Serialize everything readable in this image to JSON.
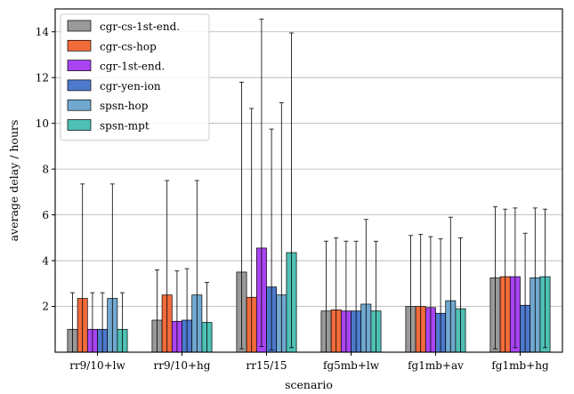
{
  "chart_data": {
    "type": "bar",
    "title": "",
    "xlabel": "scenario",
    "ylabel": "average delay / hours",
    "ylim": [
      0,
      15
    ],
    "yticks": [
      2,
      4,
      6,
      8,
      10,
      12,
      14
    ],
    "ytick_labels": [
      "2",
      "4",
      "6",
      "8",
      "10",
      "12",
      "14"
    ],
    "grid": "horizontal",
    "legend_position": "top-left",
    "categories": [
      "rr9/10+lw",
      "rr9/10+hg",
      "rr15/15",
      "fg5mb+lw",
      "fg1mb+av",
      "fg1mb+hg"
    ],
    "series": [
      {
        "name": "cgr-cs-1st-end.",
        "color": "#999999",
        "values": [
          1.0,
          1.4,
          3.5,
          1.8,
          2.0,
          3.25
        ],
        "err_low": [
          0.0,
          0.0,
          0.15,
          0.0,
          0.0,
          0.15
        ],
        "err_high": [
          2.6,
          3.6,
          11.8,
          4.85,
          5.1,
          6.35
        ]
      },
      {
        "name": "cgr-cs-hop",
        "color": "#f26b3a",
        "values": [
          2.35,
          2.5,
          2.4,
          1.85,
          2.0,
          3.3
        ],
        "err_low": [
          0.0,
          0.0,
          0.0,
          0.0,
          0.0,
          0.0
        ],
        "err_high": [
          7.35,
          7.5,
          10.65,
          5.0,
          5.15,
          6.25
        ]
      },
      {
        "name": "cgr-1st-end.",
        "color": "#a944f2",
        "values": [
          1.0,
          1.35,
          4.55,
          1.8,
          1.95,
          3.3
        ],
        "err_low": [
          0.0,
          0.0,
          0.25,
          0.0,
          0.0,
          0.2
        ],
        "err_high": [
          2.6,
          3.55,
          14.55,
          4.85,
          5.05,
          6.3
        ]
      },
      {
        "name": "cgr-yen-ion",
        "color": "#4d7acc",
        "values": [
          1.0,
          1.4,
          2.85,
          1.8,
          1.7,
          2.05
        ],
        "err_low": [
          0.0,
          0.0,
          0.1,
          0.0,
          0.0,
          0.0
        ],
        "err_high": [
          2.6,
          3.65,
          9.75,
          4.85,
          4.95,
          5.2
        ]
      },
      {
        "name": "spsn-hop",
        "color": "#71a8cf",
        "values": [
          2.35,
          2.5,
          2.5,
          2.1,
          2.25,
          3.25
        ],
        "err_low": [
          0.0,
          0.0,
          0.0,
          0.0,
          0.0,
          0.0
        ],
        "err_high": [
          7.35,
          7.5,
          10.9,
          5.8,
          5.9,
          6.3
        ]
      },
      {
        "name": "spsn-mpt",
        "color": "#4ec0b5",
        "values": [
          1.0,
          1.3,
          4.35,
          1.8,
          1.9,
          3.3
        ],
        "err_low": [
          0.0,
          0.0,
          0.2,
          0.0,
          0.0,
          0.2
        ],
        "err_high": [
          2.6,
          3.05,
          13.95,
          4.85,
          5.0,
          6.25
        ]
      }
    ]
  }
}
